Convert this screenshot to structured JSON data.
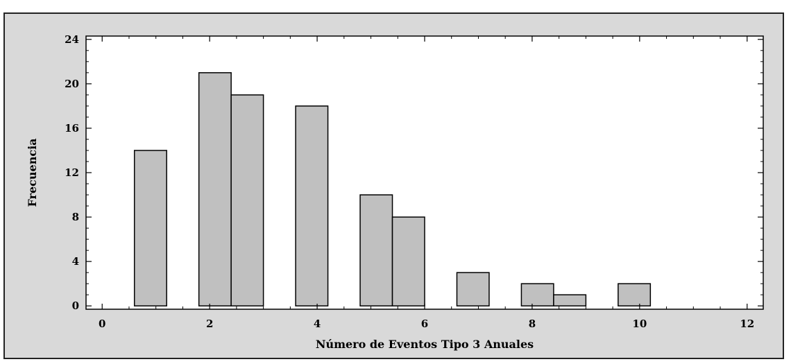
{
  "chart_data": {
    "type": "bar",
    "title": "",
    "xlabel": "Número de Eventos Tipo 3 Anuales",
    "ylabel": "Frecuencia",
    "xlim": [
      -0.3,
      12.3
    ],
    "ylim": [
      -0.3,
      24.3
    ],
    "x_ticks": [
      0,
      2,
      4,
      6,
      8,
      10,
      12
    ],
    "y_ticks": [
      0,
      4,
      8,
      12,
      16,
      20,
      24
    ],
    "x_minor_step": 0.5,
    "y_minor_step": 1,
    "bar_width": 0.6,
    "bars": [
      {
        "x": 0.9,
        "value": 14
      },
      {
        "x": 2.1,
        "value": 21
      },
      {
        "x": 2.7,
        "value": 19
      },
      {
        "x": 3.9,
        "value": 18
      },
      {
        "x": 5.1,
        "value": 10
      },
      {
        "x": 5.7,
        "value": 8
      },
      {
        "x": 6.9,
        "value": 3
      },
      {
        "x": 8.1,
        "value": 2
      },
      {
        "x": 8.7,
        "value": 1
      },
      {
        "x": 9.9,
        "value": 2
      }
    ],
    "grid": false,
    "legend": "none",
    "colors": {
      "bar_fill": "#c0c0c0",
      "bar_stroke": "#000000",
      "background": "#d9d9d9",
      "plot_background": "#ffffff"
    }
  }
}
